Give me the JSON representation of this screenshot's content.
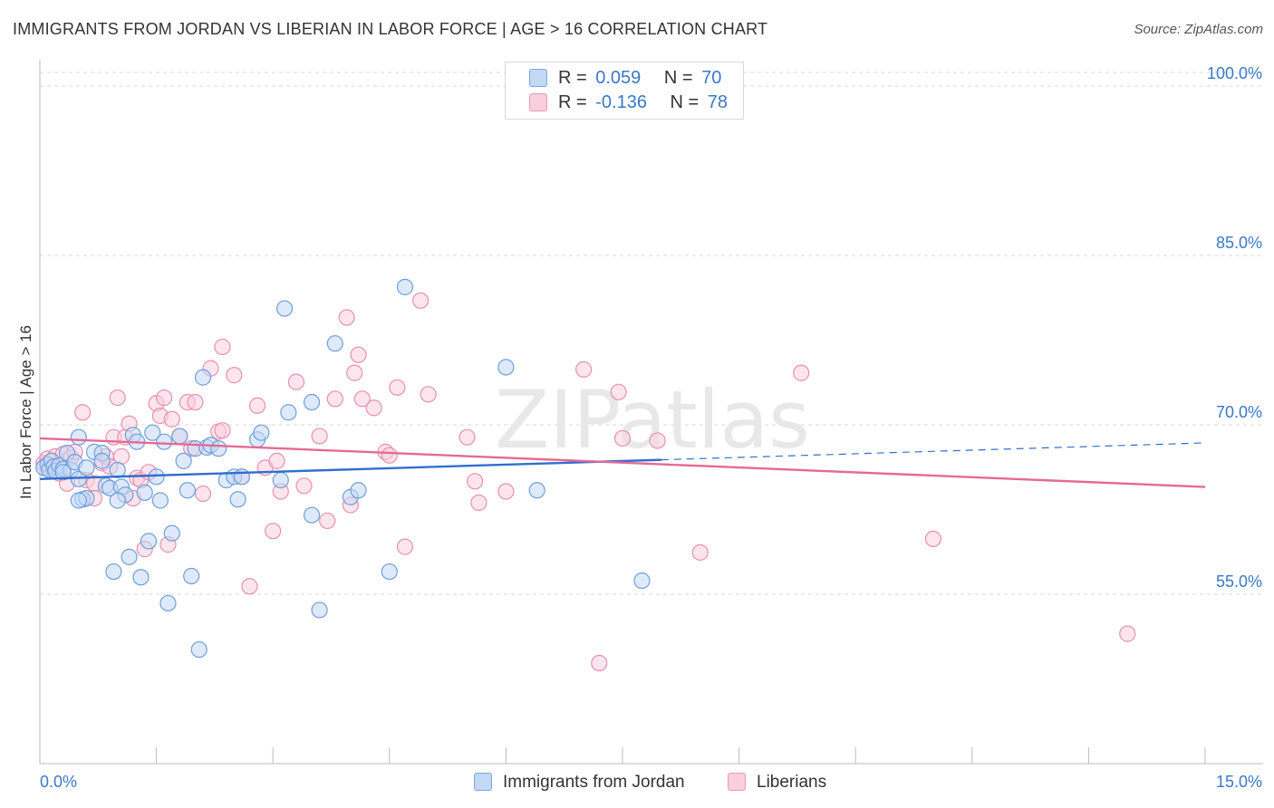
{
  "title": "IMMIGRANTS FROM JORDAN VS LIBERIAN IN LABOR FORCE | AGE > 16 CORRELATION CHART",
  "source": "Source: ZipAtlas.com",
  "watermark": "ZIPatlas",
  "legend": {
    "rows": [
      {
        "r_label": "R =",
        "r_value": "0.059",
        "n_label": "N =",
        "n_value": "70"
      },
      {
        "r_label": "R =",
        "r_value": "-0.136",
        "n_label": "N =",
        "n_value": "78"
      }
    ]
  },
  "bottom_legend": [
    "Immigrants from Jordan",
    "Liberians"
  ],
  "colors": {
    "blue_fill": "#c3d8f5",
    "blue_stroke": "#6f9edc",
    "blue_line": "#2f6fcf",
    "pink_fill": "#f9cfdc",
    "pink_stroke": "#e98fae",
    "pink_line": "#e46a94",
    "tick_text": "#3a78c8",
    "grid": "#d9d9d9"
  },
  "chart_data": {
    "type": "scatter",
    "xlabel": "",
    "ylabel": "In Labor Force | Age > 16",
    "xlim": [
      0,
      15
    ],
    "ylim": [
      40,
      102
    ],
    "x_tick_labels": [
      {
        "value": 0,
        "label": "0.0%"
      },
      {
        "value": 15,
        "label": "15.0%"
      }
    ],
    "y_tick_labels": [
      {
        "value": 100,
        "label": "100.0%"
      },
      {
        "value": 85,
        "label": "85.0%"
      },
      {
        "value": 70,
        "label": "70.0%"
      },
      {
        "value": 55,
        "label": "55.0%"
      }
    ],
    "grid": "horizontal dashed",
    "series": [
      {
        "name": "Immigrants from Jordan",
        "color": "#6f9edc",
        "trend": {
          "x": [
            0,
            8
          ],
          "y": [
            65.2,
            66.9
          ],
          "dashed_to": [
            15,
            68.4
          ]
        },
        "points": [
          [
            0.05,
            66.2
          ],
          [
            0.1,
            66.5
          ],
          [
            0.12,
            66.0
          ],
          [
            0.15,
            66.8
          ],
          [
            0.18,
            66.3
          ],
          [
            0.2,
            65.9
          ],
          [
            0.25,
            66.4
          ],
          [
            0.3,
            66.1
          ],
          [
            0.35,
            67.5
          ],
          [
            0.4,
            66.0
          ],
          [
            0.5,
            68.9
          ],
          [
            0.5,
            65.2
          ],
          [
            0.55,
            63.4
          ],
          [
            0.6,
            63.5
          ],
          [
            0.5,
            63.3
          ],
          [
            0.7,
            67.6
          ],
          [
            0.8,
            67.5
          ],
          [
            0.8,
            66.8
          ],
          [
            0.85,
            64.6
          ],
          [
            0.9,
            64.4
          ],
          [
            0.95,
            57.0
          ],
          [
            1.0,
            66.0
          ],
          [
            1.05,
            64.5
          ],
          [
            1.1,
            63.8
          ],
          [
            1.15,
            58.3
          ],
          [
            1.2,
            69.1
          ],
          [
            1.25,
            68.5
          ],
          [
            1.3,
            56.5
          ],
          [
            1.35,
            64.0
          ],
          [
            1.4,
            59.7
          ],
          [
            1.45,
            69.3
          ],
          [
            1.5,
            65.4
          ],
          [
            1.55,
            63.3
          ],
          [
            1.6,
            68.5
          ],
          [
            1.65,
            54.2
          ],
          [
            1.7,
            60.4
          ],
          [
            1.8,
            69.0
          ],
          [
            1.85,
            66.8
          ],
          [
            1.9,
            64.2
          ],
          [
            1.95,
            56.6
          ],
          [
            2.0,
            67.9
          ],
          [
            2.05,
            50.1
          ],
          [
            2.1,
            74.2
          ],
          [
            2.15,
            68.0
          ],
          [
            2.2,
            68.2
          ],
          [
            2.3,
            67.9
          ],
          [
            2.4,
            65.1
          ],
          [
            2.5,
            65.4
          ],
          [
            2.55,
            63.4
          ],
          [
            2.8,
            68.7
          ],
          [
            2.85,
            69.3
          ],
          [
            3.1,
            65.1
          ],
          [
            3.15,
            80.3
          ],
          [
            3.2,
            71.1
          ],
          [
            3.5,
            62.0
          ],
          [
            3.5,
            72.0
          ],
          [
            3.6,
            53.6
          ],
          [
            3.8,
            77.2
          ],
          [
            4.0,
            63.6
          ],
          [
            4.1,
            64.2
          ],
          [
            4.5,
            57.0
          ],
          [
            4.7,
            82.2
          ],
          [
            6.0,
            75.1
          ],
          [
            6.4,
            64.2
          ],
          [
            7.75,
            56.2
          ],
          [
            0.3,
            65.8
          ],
          [
            0.45,
            66.7
          ],
          [
            1.0,
            63.3
          ],
          [
            2.6,
            65.4
          ],
          [
            0.6,
            66.2
          ]
        ]
      },
      {
        "name": "Liberians",
        "color": "#e98fae",
        "trend": {
          "x": [
            0,
            15
          ],
          "y": [
            68.8,
            64.5
          ]
        },
        "points": [
          [
            0.05,
            66.6
          ],
          [
            0.1,
            67.0
          ],
          [
            0.15,
            66.0
          ],
          [
            0.2,
            67.2
          ],
          [
            0.25,
            65.7
          ],
          [
            0.3,
            67.4
          ],
          [
            0.35,
            64.8
          ],
          [
            0.4,
            67.1
          ],
          [
            0.45,
            67.6
          ],
          [
            0.55,
            71.1
          ],
          [
            0.6,
            65.1
          ],
          [
            0.7,
            64.8
          ],
          [
            0.7,
            63.5
          ],
          [
            0.8,
            66.6
          ],
          [
            0.85,
            67.2
          ],
          [
            0.9,
            66.3
          ],
          [
            0.95,
            68.9
          ],
          [
            1.0,
            72.4
          ],
          [
            1.05,
            67.2
          ],
          [
            1.1,
            68.9
          ],
          [
            1.15,
            70.1
          ],
          [
            1.2,
            63.5
          ],
          [
            1.25,
            65.3
          ],
          [
            1.3,
            65.1
          ],
          [
            1.35,
            59.0
          ],
          [
            1.4,
            65.8
          ],
          [
            1.5,
            71.9
          ],
          [
            1.55,
            70.8
          ],
          [
            1.6,
            72.4
          ],
          [
            1.65,
            59.4
          ],
          [
            1.7,
            70.5
          ],
          [
            1.8,
            69.0
          ],
          [
            1.9,
            72.0
          ],
          [
            1.95,
            67.9
          ],
          [
            2.0,
            72.0
          ],
          [
            2.1,
            63.9
          ],
          [
            2.2,
            75.0
          ],
          [
            2.3,
            69.4
          ],
          [
            2.35,
            69.5
          ],
          [
            2.5,
            74.4
          ],
          [
            2.6,
            65.4
          ],
          [
            2.7,
            55.7
          ],
          [
            2.8,
            71.7
          ],
          [
            2.9,
            66.2
          ],
          [
            3.0,
            60.6
          ],
          [
            3.05,
            66.8
          ],
          [
            3.1,
            64.1
          ],
          [
            3.3,
            73.8
          ],
          [
            3.4,
            64.6
          ],
          [
            3.6,
            69.0
          ],
          [
            3.7,
            61.5
          ],
          [
            3.8,
            72.3
          ],
          [
            3.95,
            79.5
          ],
          [
            4.0,
            62.9
          ],
          [
            4.05,
            74.6
          ],
          [
            4.1,
            76.2
          ],
          [
            4.15,
            72.3
          ],
          [
            4.3,
            71.5
          ],
          [
            4.45,
            67.6
          ],
          [
            4.5,
            67.3
          ],
          [
            4.6,
            73.3
          ],
          [
            4.7,
            59.2
          ],
          [
            4.9,
            81.0
          ],
          [
            5.0,
            72.7
          ],
          [
            5.5,
            68.9
          ],
          [
            5.6,
            65.0
          ],
          [
            5.65,
            63.1
          ],
          [
            6.0,
            64.1
          ],
          [
            7.0,
            74.9
          ],
          [
            7.2,
            48.9
          ],
          [
            7.45,
            72.9
          ],
          [
            7.5,
            68.8
          ],
          [
            7.95,
            68.6
          ],
          [
            8.5,
            58.7
          ],
          [
            9.8,
            74.6
          ],
          [
            11.5,
            59.9
          ],
          [
            14.0,
            51.5
          ],
          [
            2.35,
            76.9
          ]
        ]
      }
    ]
  }
}
